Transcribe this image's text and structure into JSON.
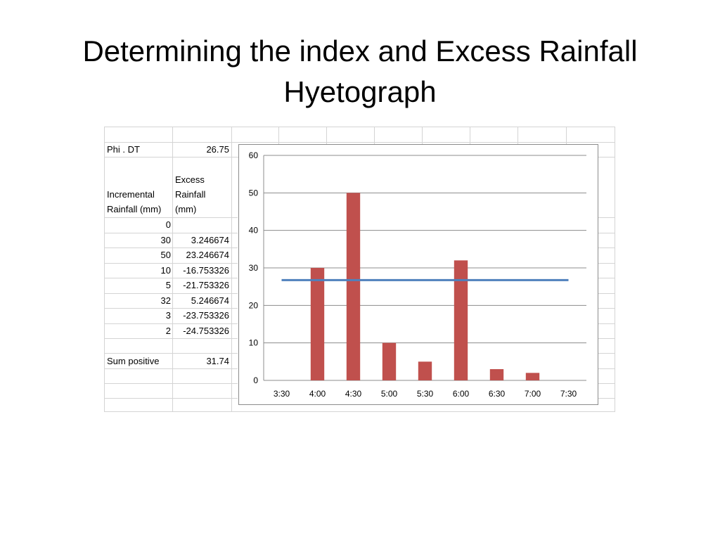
{
  "slide": {
    "title_line1": "Determining the   index and Excess Rainfall",
    "title_line2": "Hyetograph"
  },
  "sheet": {
    "phi_label": "Phi . DT",
    "phi_value": "26.75",
    "col1_header_line1": "Incremental",
    "col1_header_line2": "Rainfall (mm)",
    "col2_header_line1": "Excess",
    "col2_header_line2": "Rainfall",
    "col2_header_line3": "(mm)",
    "rows": [
      {
        "incremental": "0",
        "excess": ""
      },
      {
        "incremental": "30",
        "excess": "3.246674"
      },
      {
        "incremental": "50",
        "excess": "23.246674"
      },
      {
        "incremental": "10",
        "excess": "-16.753326"
      },
      {
        "incremental": "5",
        "excess": "-21.753326"
      },
      {
        "incremental": "32",
        "excess": "5.246674"
      },
      {
        "incremental": "3",
        "excess": "-23.753326"
      },
      {
        "incremental": "2",
        "excess": "-24.753326"
      }
    ],
    "sum_label": "Sum positive",
    "sum_value": "31.74"
  },
  "chart_data": {
    "type": "bar",
    "categories": [
      "3:30",
      "4:00",
      "4:30",
      "5:00",
      "5:30",
      "6:00",
      "6:30",
      "7:00",
      "7:30"
    ],
    "series": [
      {
        "values": [
          0,
          30,
          50,
          10,
          5,
          32,
          3,
          2,
          0
        ],
        "color": "#c0504d"
      }
    ],
    "overlay_line": {
      "value": 26.75,
      "color": "#4f81bd"
    },
    "ylim": [
      0,
      60
    ],
    "yticks": [
      0,
      10,
      20,
      30,
      40,
      50,
      60
    ],
    "grid": true,
    "legend": "none",
    "title": "",
    "xlabel": "",
    "ylabel": ""
  }
}
